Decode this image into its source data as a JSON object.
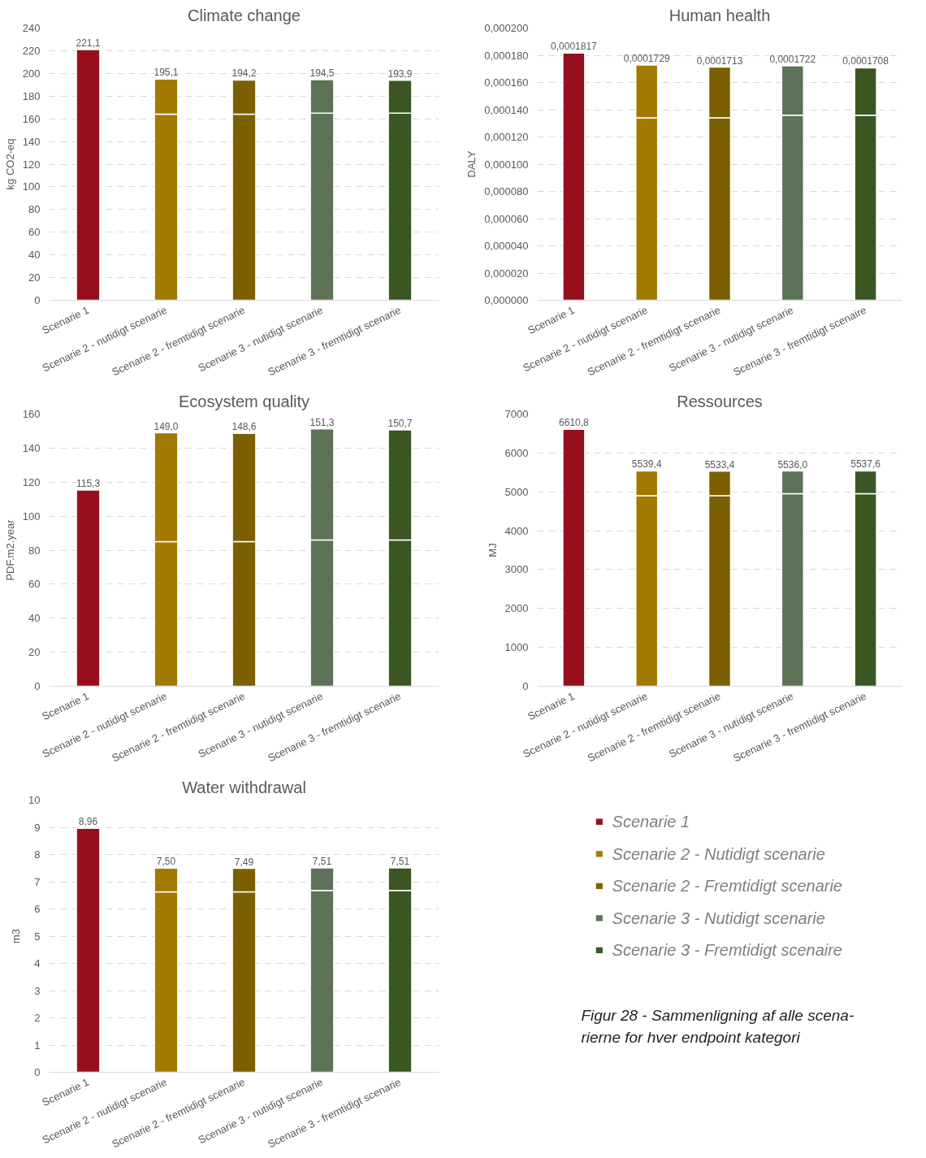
{
  "chart_data": [
    {
      "type": "bar",
      "title": "Climate change",
      "ylabel": "kg CO2-eq",
      "stacked": true,
      "grid": "y",
      "categories": [
        "Scenarie 1",
        "Scenarie 2 - nutidigt scenarie",
        "Scenarie 2 - fremtidigt scenarie",
        "Scenarie 3 - nutidigt scenarie",
        "Scenarie 3 - fremtidigt scenarie"
      ],
      "series": [
        {
          "colors": [
            "#960f1a",
            "#a27a00",
            "#7b5f00",
            "#5c7358",
            "#3a5623"
          ],
          "values": [
            221.1,
            164,
            164,
            165,
            165
          ]
        },
        {
          "colors": [
            "#960f1a",
            "#a27a00",
            "#7b5f00",
            "#5c7358",
            "#3a5623"
          ],
          "values": [
            null,
            31.1,
            30.2,
            29.5,
            28.9
          ]
        }
      ],
      "totals": [
        "221,1",
        "195,1",
        "194,2",
        "194,5",
        "193,9"
      ],
      "ylim": [
        0,
        240
      ],
      "yticks": [
        0,
        20,
        40,
        60,
        80,
        100,
        120,
        140,
        160,
        180,
        200,
        220,
        240
      ]
    },
    {
      "type": "bar",
      "title": "Human health",
      "ylabel": "DALY",
      "stacked": true,
      "grid": "y",
      "categories": [
        "Scenarie 1",
        "Scenarie 2 - nutidigt scenarie",
        "Scenarie 2 - fremtidigt scenarie",
        "Scenarie 3 - nutidigt scenarie",
        "Scenarie 3 - fremtidigt scenaire"
      ],
      "series": [
        {
          "colors": [
            "#960f1a",
            "#a27a00",
            "#7b5f00",
            "#5c7358",
            "#3a5623"
          ],
          "values": [
            0.0001817,
            0.000134,
            0.000134,
            0.000136,
            0.000136
          ]
        },
        {
          "colors": [
            "#960f1a",
            "#a27a00",
            "#7b5f00",
            "#5c7358",
            "#3a5623"
          ],
          "values": [
            null,
            3.89e-05,
            3.73e-05,
            3.62e-05,
            3.48e-05
          ]
        }
      ],
      "totals": [
        "0,0001817",
        "0,0001729",
        "0,0001713",
        "0,0001722",
        "0,0001708"
      ],
      "ylim": [
        0,
        0.0002
      ],
      "yticks": [
        {
          "value": 0,
          "label": "0,000000"
        },
        {
          "value": 2e-05,
          "label": "0,000020"
        },
        {
          "value": 4e-05,
          "label": "0,000040"
        },
        {
          "value": 6e-05,
          "label": "0,000060"
        },
        {
          "value": 8e-05,
          "label": "0,000080"
        },
        {
          "value": 0.0001,
          "label": "0,000100"
        },
        {
          "value": 0.00012,
          "label": "0,000120"
        },
        {
          "value": 0.00014,
          "label": "0,000140"
        },
        {
          "value": 0.00016,
          "label": "0,000160"
        },
        {
          "value": 0.00018,
          "label": "0,000180"
        },
        {
          "value": 0.0002,
          "label": "0,000200"
        }
      ]
    },
    {
      "type": "bar",
      "title": "Ecosystem quality",
      "ylabel": "PDF.m2.year",
      "stacked": true,
      "grid": "y",
      "categories": [
        "Scenarie 1",
        "Scenarie 2 - nutidigt scenarie",
        "Scenarie 2 - fremtidigt scenarie",
        "Scenarie 3 - nutidigt scenarie",
        "Scenarie 3 - fremtidigt scenarie"
      ],
      "series": [
        {
          "colors": [
            "#960f1a",
            "#a27a00",
            "#7b5f00",
            "#5c7358",
            "#3a5623"
          ],
          "values": [
            115.3,
            85,
            85,
            86,
            86
          ]
        },
        {
          "colors": [
            "#960f1a",
            "#a27a00",
            "#7b5f00",
            "#5c7358",
            "#3a5623"
          ],
          "values": [
            null,
            64.0,
            63.6,
            65.3,
            64.7
          ]
        }
      ],
      "totals": [
        "115,3",
        "149,0",
        "148,6",
        "151,3",
        "150,7"
      ],
      "ylim": [
        0,
        160
      ],
      "yticks": [
        0,
        20,
        40,
        60,
        80,
        100,
        120,
        140,
        160
      ]
    },
    {
      "type": "bar",
      "title": "Ressources",
      "ylabel": "MJ",
      "stacked": true,
      "grid": "y",
      "categories": [
        "Scenarie 1",
        "Scenarie 2 - nutidigt scenarie",
        "Scenarie 2 - fremtidigt scenarie",
        "Scenarie 3 - nutidigt scenarie",
        "Scenarie 3 - fremtidigt scenarie"
      ],
      "series": [
        {
          "colors": [
            "#960f1a",
            "#a27a00",
            "#7b5f00",
            "#5c7358",
            "#3a5623"
          ],
          "values": [
            6610.8,
            4900,
            4900,
            4950,
            4950
          ]
        },
        {
          "colors": [
            "#960f1a",
            "#a27a00",
            "#7b5f00",
            "#5c7358",
            "#3a5623"
          ],
          "values": [
            null,
            639.4,
            633.4,
            586.0,
            587.6
          ]
        }
      ],
      "totals": [
        "6610,8",
        "5539,4",
        "5533,4",
        "5536,0",
        "5537,6"
      ],
      "ylim": [
        0,
        7000
      ],
      "yticks": [
        0,
        1000,
        2000,
        3000,
        4000,
        5000,
        6000,
        7000
      ]
    },
    {
      "type": "bar",
      "title": "Water withdrawal",
      "ylabel": "m3",
      "stacked": true,
      "grid": "y",
      "categories": [
        "Scenarie 1",
        "Scenarie 2 - nutidigt scenarie",
        "Scenarie 2 - fremtidigt scenarie",
        "Scenarie 3 - nutidigt scenarie",
        "Scenarie 3 - fremtidigt scenarie"
      ],
      "series": [
        {
          "colors": [
            "#960f1a",
            "#a27a00",
            "#7b5f00",
            "#5c7358",
            "#3a5623"
          ],
          "values": [
            8.96,
            6.63,
            6.63,
            6.68,
            6.68
          ]
        },
        {
          "colors": [
            "#960f1a",
            "#a27a00",
            "#7b5f00",
            "#5c7358",
            "#3a5623"
          ],
          "values": [
            null,
            0.87,
            0.86,
            0.83,
            0.83
          ]
        }
      ],
      "totals": [
        "8,96",
        "7,50",
        "7,49",
        "7,51",
        "7,51"
      ],
      "ylim": [
        0,
        10
      ],
      "yticks": [
        0,
        1,
        2,
        3,
        4,
        5,
        6,
        7,
        8,
        9,
        10
      ]
    },
    {
      "type": "other",
      "categories": [
        "Scenarie 1",
        "Scenarie 2 - Nutidigt scenarie",
        "Scenarie 2 - Fremtidigt scenarie",
        "Scenarie 3 - Nutidigt scenarie",
        "Scenarie 3 - Fremtidigt scenaire"
      ],
      "colors": [
        "#960f1a",
        "#a27a00",
        "#7b5f00",
        "#5c7358",
        "#3a5623"
      ],
      "annotations": [
        "Figur 28 - Sammenligning af alle scena-\nrierne for hver endpoint kategori"
      ]
    }
  ]
}
